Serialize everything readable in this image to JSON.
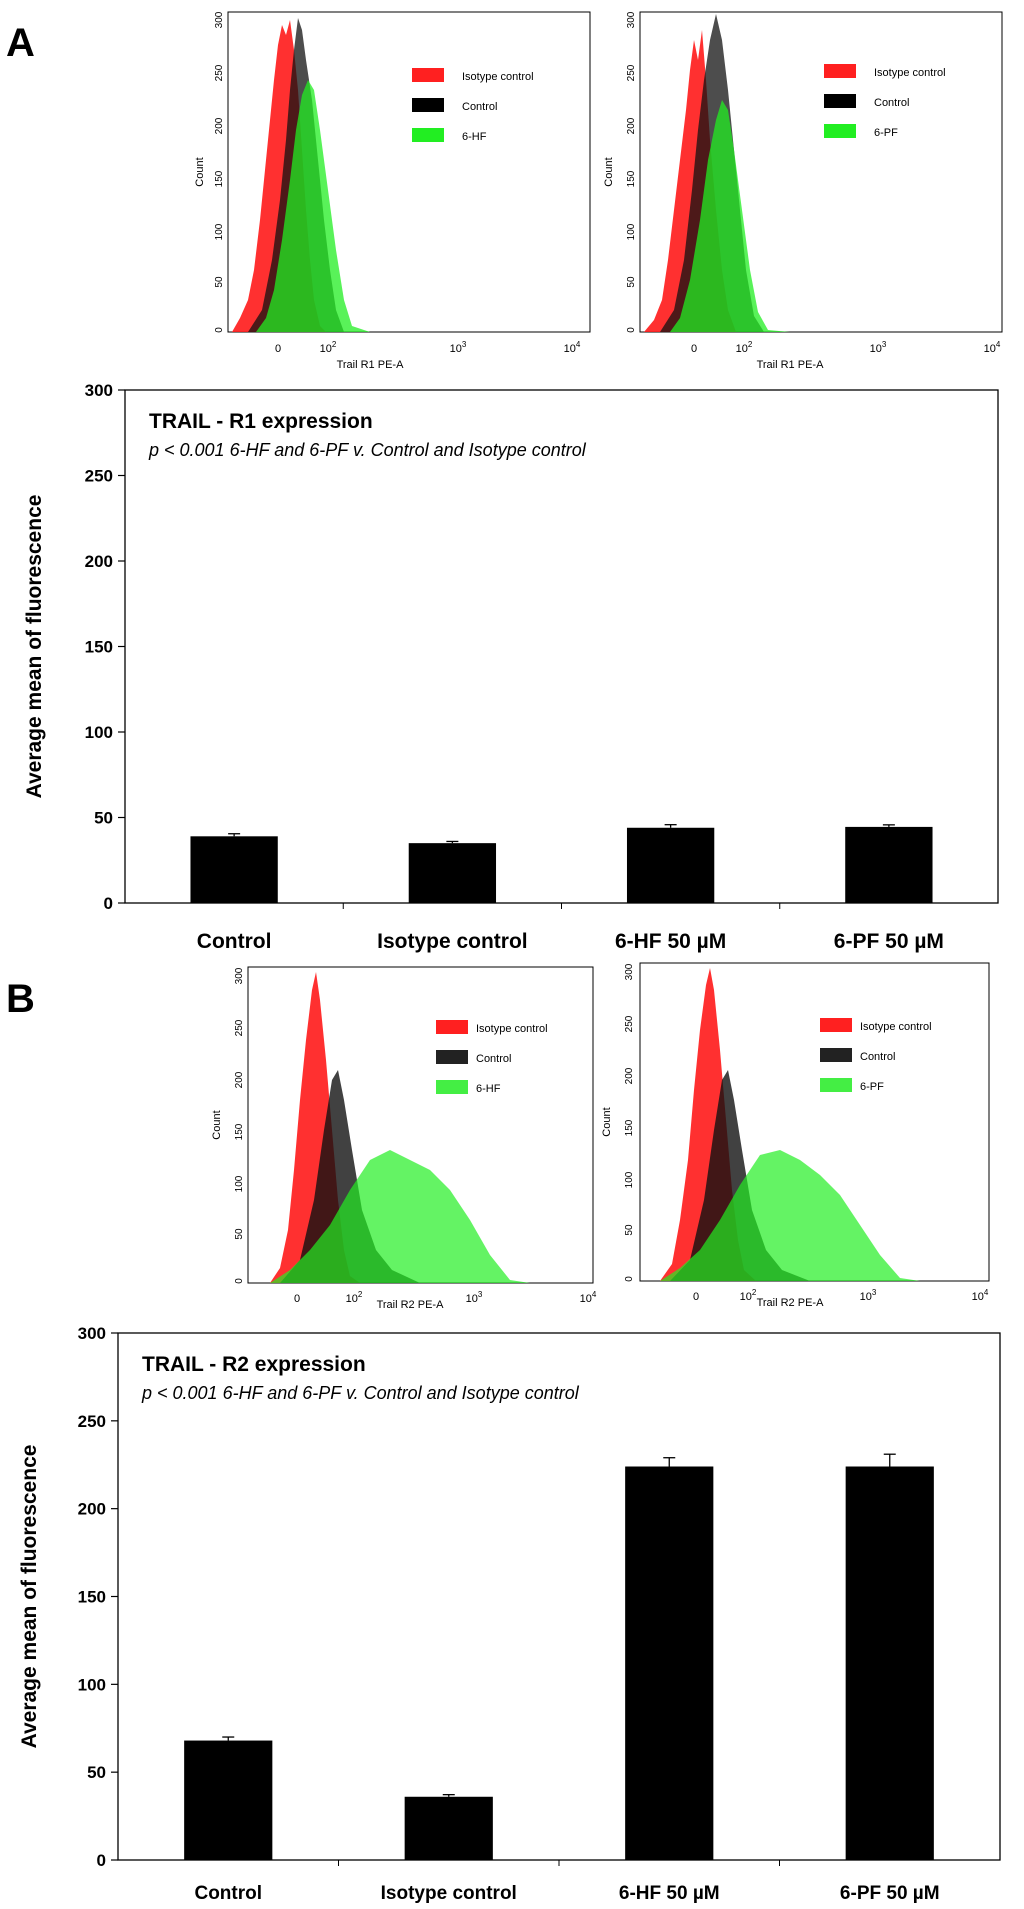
{
  "panels": [
    {
      "label": "A",
      "histograms": [
        {
          "ylabel": "Count",
          "xlabel": "Trail R1 PE-A",
          "yticks": [
            "0",
            "50",
            "100",
            "150",
            "200",
            "250",
            "300"
          ],
          "xticks": [
            "0",
            "10",
            "10",
            "10"
          ],
          "xtick_exponents": [
            "",
            "2",
            "3",
            "4"
          ],
          "legend": [
            {
              "label": "Isotype control",
              "color": "#ff2020"
            },
            {
              "label": "Control",
              "color": "#000000"
            },
            {
              "label": "6-HF",
              "color": "#22ee22"
            }
          ]
        },
        {
          "ylabel": "Count",
          "xlabel": "Trail R1 PE-A",
          "yticks": [
            "0",
            "50",
            "100",
            "150",
            "200",
            "250",
            "300"
          ],
          "xticks": [
            "0",
            "10",
            "10",
            "10"
          ],
          "xtick_exponents": [
            "",
            "2",
            "3",
            "4"
          ],
          "legend": [
            {
              "label": "Isotype control",
              "color": "#ff2020"
            },
            {
              "label": "Control",
              "color": "#000000"
            },
            {
              "label": "6-PF",
              "color": "#22ee22"
            }
          ]
        }
      ]
    },
    {
      "label": "B",
      "histograms": [
        {
          "ylabel": "Count",
          "xlabel": "Trail R2 PE-A",
          "yticks": [
            "0",
            "50",
            "100",
            "150",
            "200",
            "250",
            "300"
          ],
          "xticks": [
            "0",
            "10",
            "10",
            "10"
          ],
          "xtick_exponents": [
            "",
            "2",
            "3",
            "4"
          ],
          "legend": [
            {
              "label": "Isotype control",
              "color": "#ff2020"
            },
            {
              "label": "Control",
              "color": "#000000"
            },
            {
              "label": "6-HF",
              "color": "#22ee22"
            }
          ]
        },
        {
          "ylabel": "Count",
          "xlabel": "Trail R2 PE-A",
          "yticks": [
            "0",
            "50",
            "100",
            "150",
            "200",
            "250",
            "300"
          ],
          "xticks": [
            "0",
            "10",
            "10",
            "10"
          ],
          "xtick_exponents": [
            "",
            "2",
            "3",
            "4"
          ],
          "legend": [
            {
              "label": "Isotype control",
              "color": "#ff2020"
            },
            {
              "label": "Control",
              "color": "#000000"
            },
            {
              "label": "6-PF",
              "color": "#22ee22"
            }
          ]
        }
      ]
    }
  ],
  "chart_data": [
    {
      "type": "bar",
      "title": "TRAIL - R1 expression",
      "subtitle": "p < 0.001 6-HF and 6-PF v. Control and Isotype control",
      "ylabel": "Average mean of fluorescence",
      "xlabel": "",
      "categories": [
        "Control",
        "Isotype control",
        "6-HF 50 µM",
        "6-PF 50 µM"
      ],
      "values": [
        39,
        35,
        44,
        44.5
      ],
      "errors": [
        1.5,
        1.0,
        1.8,
        1.2
      ],
      "ylim": [
        0,
        300
      ],
      "yticks": [
        "0",
        "50",
        "100",
        "150",
        "200",
        "250",
        "300"
      ],
      "bar_color": "#000000",
      "grid": false
    },
    {
      "type": "bar",
      "title": "TRAIL - R2 expression",
      "subtitle": "p < 0.001 6-HF and 6-PF v. Control and Isotype control",
      "ylabel": "Average mean of fluorescence",
      "xlabel": "",
      "categories": [
        "Control",
        "Isotype control",
        "6-HF 50 µM",
        "6-PF 50 µM"
      ],
      "values": [
        68,
        36,
        224,
        224
      ],
      "errors": [
        2,
        1.2,
        5,
        7
      ],
      "ylim": [
        0,
        300
      ],
      "yticks": [
        "0",
        "50",
        "100",
        "150",
        "200",
        "250",
        "300"
      ],
      "bar_color": "#000000",
      "grid": false
    }
  ]
}
